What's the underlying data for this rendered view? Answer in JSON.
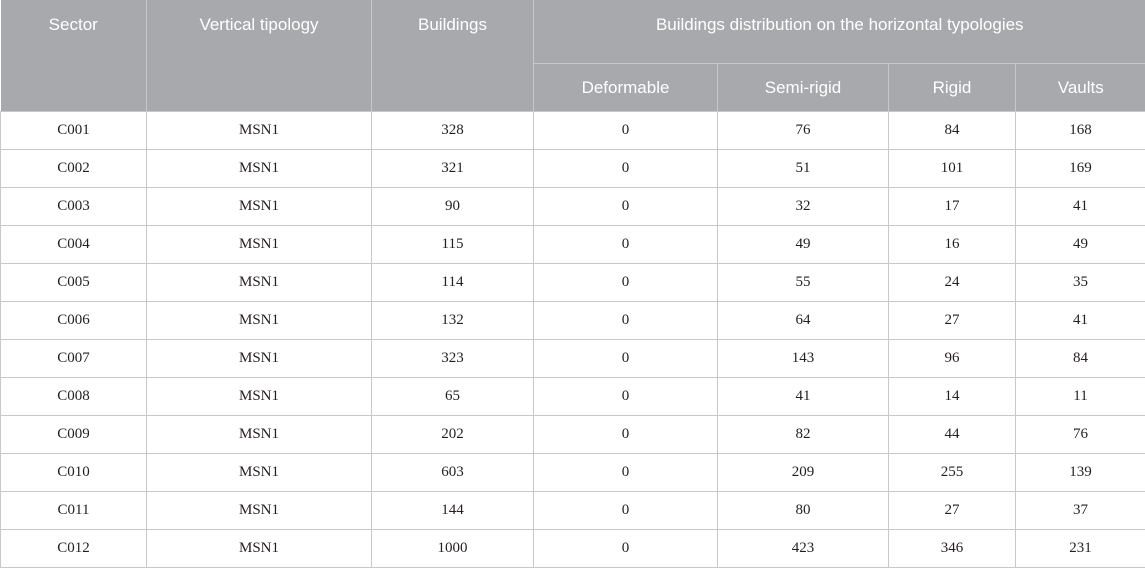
{
  "headers": {
    "sector": "Sector",
    "vertical_typology": "Vertical tipology",
    "buildings": "Buildings",
    "distribution": "Buildings distribution on the horizontal typologies",
    "deformable": "Deformable",
    "semi_rigid": "Semi-rigid",
    "rigid": "Rigid",
    "vaults": "Vaults"
  },
  "rows": [
    [
      "C001",
      "MSN1",
      "328",
      "0",
      "76",
      "84",
      "168"
    ],
    [
      "C002",
      "MSN1",
      "321",
      "0",
      "51",
      "101",
      "169"
    ],
    [
      "C003",
      "MSN1",
      "90",
      "0",
      "32",
      "17",
      "41"
    ],
    [
      "C004",
      "MSN1",
      "115",
      "0",
      "49",
      "16",
      "49"
    ],
    [
      "C005",
      "MSN1",
      "114",
      "0",
      "55",
      "24",
      "35"
    ],
    [
      "C006",
      "MSN1",
      "132",
      "0",
      "64",
      "27",
      "41"
    ],
    [
      "C007",
      "MSN1",
      "323",
      "0",
      "143",
      "96",
      "84"
    ],
    [
      "C008",
      "MSN1",
      "65",
      "0",
      "41",
      "14",
      "11"
    ],
    [
      "C009",
      "MSN1",
      "202",
      "0",
      "82",
      "44",
      "76"
    ],
    [
      "C010",
      "MSN1",
      "603",
      "0",
      "209",
      "255",
      "139"
    ],
    [
      "C011",
      "MSN1",
      "144",
      "0",
      "80",
      "27",
      "37"
    ],
    [
      "C012",
      "MSN1",
      "1000",
      "0",
      "423",
      "346",
      "231"
    ]
  ]
}
